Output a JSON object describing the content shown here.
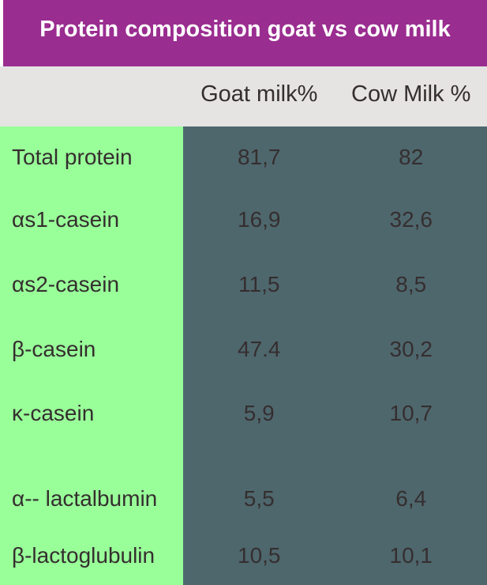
{
  "title": "Protein composition goat vs cow milk",
  "header": {
    "col1": "Goat milk%",
    "col2": "Cow Milk %"
  },
  "rows": [
    {
      "label": "Total protein",
      "goat": "81,7",
      "cow": "82"
    },
    {
      "label": "αs1-casein",
      "goat": "16,9",
      "cow": "32,6"
    },
    {
      "label": "αs2-casein",
      "goat": "11,5",
      "cow": "8,5"
    },
    {
      "label": "β-casein",
      "goat": "47.4",
      "cow": "30,2"
    },
    {
      "label": "κ-casein",
      "goat": "5,9",
      "cow": "10,7"
    },
    {
      "label": "α-- lactalbumin",
      "goat": "5,5",
      "cow": "6,4"
    },
    {
      "label": "β-lactoglubulin",
      "goat": "10,5",
      "cow": "10,1"
    }
  ],
  "colors": {
    "banner": "#9A2D90",
    "label_col": "#99FF99",
    "data_col": "#4E676D",
    "header_row": "#E5E4E3",
    "title_text": "#FFFFFF",
    "body_text": "#352E2F"
  },
  "chart_data": {
    "type": "table",
    "title": "Protein composition goat vs cow milk",
    "columns": [
      "",
      "Goat milk%",
      "Cow Milk %"
    ],
    "categories": [
      "Total protein",
      "αs1-casein",
      "αs2-casein",
      "β-casein",
      "κ-casein",
      "α-- lactalbumin",
      "β-lactoglubulin"
    ],
    "series": [
      {
        "name": "Goat milk%",
        "values": [
          81.7,
          16.9,
          11.5,
          47.4,
          5.9,
          5.5,
          10.5
        ]
      },
      {
        "name": "Cow Milk %",
        "values": [
          82,
          32.6,
          8.5,
          30.2,
          10.7,
          6.4,
          10.1
        ]
      }
    ],
    "notes": "Decimal comma used for all values except goat β-casein shown as 47.4; empty spacer row between κ-casein and α-- lactalbumin"
  }
}
